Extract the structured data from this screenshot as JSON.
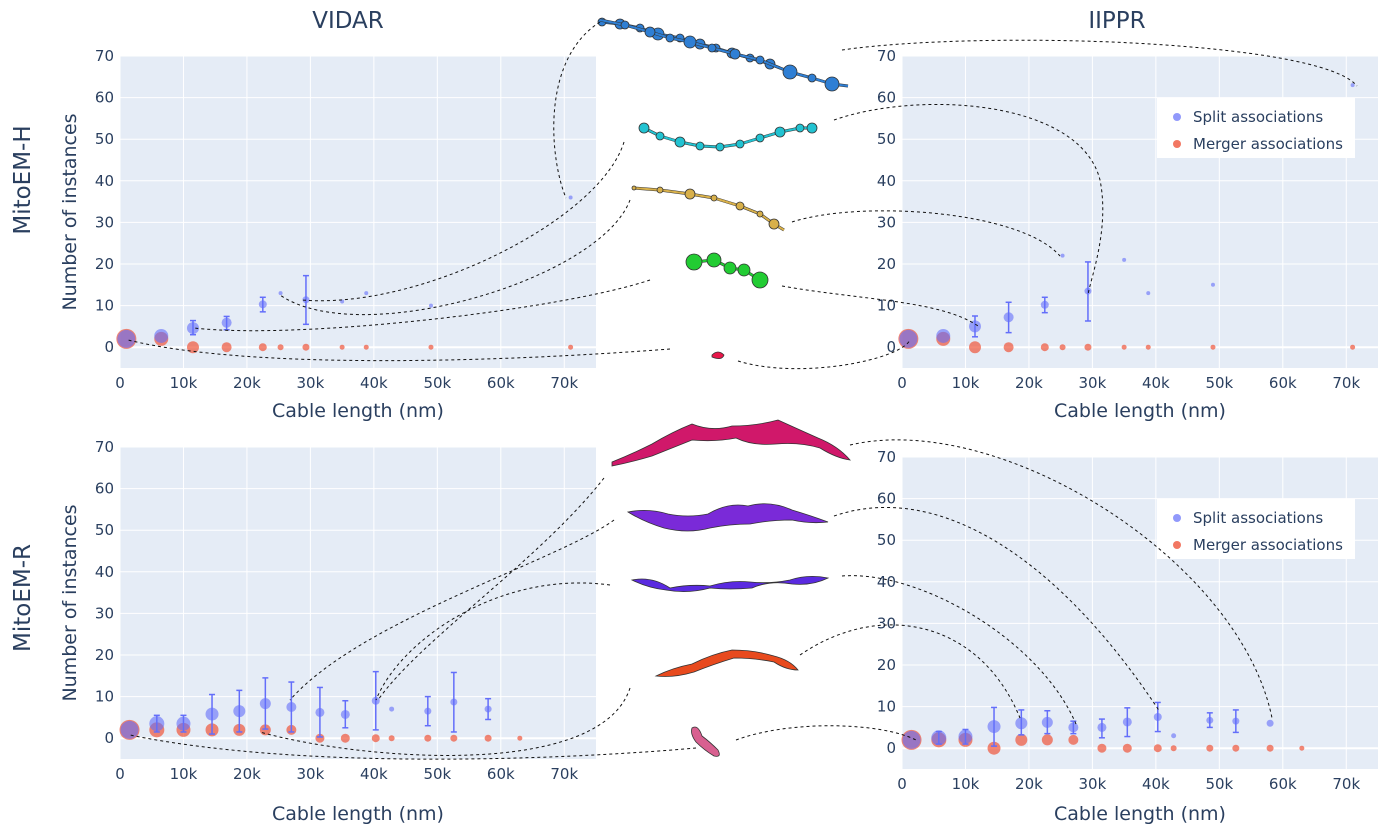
{
  "row_labels": [
    "MitoEM-H",
    "MitoEM-R"
  ],
  "column_titles": [
    "VIDAR",
    "IIPPR"
  ],
  "colors": {
    "split": "#636efa",
    "merger": "#ef553b",
    "plot_bg": "#e5ecf6",
    "grid": "#ffffff",
    "text": "#2a3f5f"
  },
  "chart_data": [
    {
      "type": "scatter",
      "panel": "MitoEM-H / VIDAR",
      "title": "VIDAR",
      "row_label": "MitoEM-H",
      "xlabel": "Cable length (nm)",
      "ylabel": "Number of instances",
      "xlim": [
        0,
        75000
      ],
      "ylim": [
        -5,
        70
      ],
      "xticks": [
        0,
        10000,
        20000,
        30000,
        40000,
        50000,
        60000,
        70000
      ],
      "xtick_labels": [
        "0",
        "10k",
        "20k",
        "30k",
        "40k",
        "50k",
        "60k",
        "70k"
      ],
      "yticks": [
        0,
        10,
        20,
        30,
        40,
        50,
        60,
        70
      ],
      "ytick_labels": [
        "0",
        "10",
        "20",
        "30",
        "40",
        "50",
        "60",
        "70"
      ],
      "grid": true,
      "legend": false,
      "series": [
        {
          "name": "Split associations",
          "points": [
            {
              "x": 1000,
              "y": 2,
              "lo": 2,
              "hi": 2,
              "size": 9
            },
            {
              "x": 6500,
              "y": 2.7,
              "lo": 2.7,
              "hi": 2.7,
              "size": 7
            },
            {
              "x": 11500,
              "y": 4.6,
              "lo": 3,
              "hi": 6.4,
              "size": 6
            },
            {
              "x": 16800,
              "y": 5.9,
              "lo": 4.2,
              "hi": 7.4,
              "size": 5
            },
            {
              "x": 22500,
              "y": 10.3,
              "lo": 8.5,
              "hi": 12,
              "size": 4
            },
            {
              "x": 25300,
              "y": 13,
              "lo": 13,
              "hi": 13,
              "size": 2
            },
            {
              "x": 29300,
              "y": 11.4,
              "lo": 5.5,
              "hi": 17.2,
              "size": 3.5
            },
            {
              "x": 35000,
              "y": 11,
              "lo": 11,
              "hi": 11,
              "size": 2
            },
            {
              "x": 38800,
              "y": 13,
              "lo": 13,
              "hi": 13,
              "size": 2
            },
            {
              "x": 49000,
              "y": 10,
              "lo": 10,
              "hi": 10,
              "size": 2
            },
            {
              "x": 71000,
              "y": 36,
              "lo": 36,
              "hi": 36,
              "size": 2
            }
          ]
        },
        {
          "name": "Merger associations",
          "points": [
            {
              "x": 1000,
              "y": 2,
              "size": 10
            },
            {
              "x": 6500,
              "y": 2,
              "size": 7
            },
            {
              "x": 11500,
              "y": 0,
              "size": 6
            },
            {
              "x": 16800,
              "y": 0,
              "size": 5
            },
            {
              "x": 22500,
              "y": 0,
              "size": 4
            },
            {
              "x": 25300,
              "y": 0,
              "size": 3
            },
            {
              "x": 29300,
              "y": 0,
              "size": 3.5
            },
            {
              "x": 35000,
              "y": 0,
              "size": 2.5
            },
            {
              "x": 38800,
              "y": 0,
              "size": 2.5
            },
            {
              "x": 49000,
              "y": 0,
              "size": 2.5
            },
            {
              "x": 71000,
              "y": 0,
              "size": 2.5
            }
          ]
        }
      ]
    },
    {
      "type": "scatter",
      "panel": "MitoEM-H / IIPPR",
      "title": "IIPPR",
      "xlabel": "Cable length (nm)",
      "ylabel": "",
      "xlim": [
        0,
        75000
      ],
      "ylim": [
        -5,
        70
      ],
      "xticks": [
        0,
        10000,
        20000,
        30000,
        40000,
        50000,
        60000,
        70000
      ],
      "xtick_labels": [
        "0",
        "10k",
        "20k",
        "30k",
        "40k",
        "50k",
        "60k",
        "70k"
      ],
      "yticks": [
        0,
        10,
        20,
        30,
        40,
        50,
        60,
        70
      ],
      "ytick_labels": [
        "0",
        "10",
        "20",
        "30",
        "40",
        "50",
        "60",
        "70"
      ],
      "grid": true,
      "legend": true,
      "legend_position": "top-right",
      "series": [
        {
          "name": "Split associations",
          "points": [
            {
              "x": 1000,
              "y": 2,
              "lo": 2,
              "hi": 2,
              "size": 9
            },
            {
              "x": 6500,
              "y": 2.7,
              "lo": 2.7,
              "hi": 2.7,
              "size": 7
            },
            {
              "x": 11500,
              "y": 5,
              "lo": 2.5,
              "hi": 7.5,
              "size": 6
            },
            {
              "x": 16800,
              "y": 7.2,
              "lo": 3.5,
              "hi": 10.8,
              "size": 5
            },
            {
              "x": 22500,
              "y": 10.2,
              "lo": 8.3,
              "hi": 12,
              "size": 4
            },
            {
              "x": 25300,
              "y": 22,
              "lo": 22,
              "hi": 22,
              "size": 2
            },
            {
              "x": 29300,
              "y": 13.5,
              "lo": 6.3,
              "hi": 20.5,
              "size": 3.5
            },
            {
              "x": 35000,
              "y": 21,
              "lo": 21,
              "hi": 21,
              "size": 2
            },
            {
              "x": 38800,
              "y": 13,
              "lo": 13,
              "hi": 13,
              "size": 2
            },
            {
              "x": 49000,
              "y": 15,
              "lo": 15,
              "hi": 15,
              "size": 2
            },
            {
              "x": 71000,
              "y": 63,
              "lo": 63,
              "hi": 63,
              "size": 2
            }
          ]
        },
        {
          "name": "Merger associations",
          "points": [
            {
              "x": 1000,
              "y": 2,
              "size": 10
            },
            {
              "x": 6500,
              "y": 2,
              "size": 7
            },
            {
              "x": 11500,
              "y": 0,
              "size": 6
            },
            {
              "x": 16800,
              "y": 0,
              "size": 5
            },
            {
              "x": 22500,
              "y": 0,
              "size": 4
            },
            {
              "x": 25300,
              "y": 0,
              "size": 3
            },
            {
              "x": 29300,
              "y": 0,
              "size": 3.5
            },
            {
              "x": 35000,
              "y": 0,
              "size": 2.5
            },
            {
              "x": 38800,
              "y": 0,
              "size": 2.5
            },
            {
              "x": 49000,
              "y": 0,
              "size": 2.5
            },
            {
              "x": 71000,
              "y": 0,
              "size": 2.5
            }
          ]
        }
      ]
    },
    {
      "type": "scatter",
      "panel": "MitoEM-R / VIDAR",
      "row_label": "MitoEM-R",
      "xlabel": "Cable length (nm)",
      "ylabel": "Number of instances",
      "xlim": [
        0,
        75000
      ],
      "ylim": [
        -5,
        70
      ],
      "xticks": [
        0,
        10000,
        20000,
        30000,
        40000,
        50000,
        60000,
        70000
      ],
      "xtick_labels": [
        "0",
        "10k",
        "20k",
        "30k",
        "40k",
        "50k",
        "60k",
        "70k"
      ],
      "yticks": [
        0,
        10,
        20,
        30,
        40,
        50,
        60,
        70
      ],
      "ytick_labels": [
        "0",
        "10",
        "20",
        "30",
        "40",
        "50",
        "60",
        "70"
      ],
      "grid": true,
      "legend": false,
      "series": [
        {
          "name": "Split associations",
          "points": [
            {
              "x": 1500,
              "y": 2,
              "lo": 2,
              "hi": 2,
              "size": 9
            },
            {
              "x": 5800,
              "y": 3.5,
              "lo": 1.5,
              "hi": 5.5,
              "size": 7.5
            },
            {
              "x": 10000,
              "y": 3.5,
              "lo": 1.5,
              "hi": 5.5,
              "size": 7
            },
            {
              "x": 14500,
              "y": 5.8,
              "lo": 1,
              "hi": 10.5,
              "size": 6.5
            },
            {
              "x": 18800,
              "y": 6.5,
              "lo": 1.5,
              "hi": 11.5,
              "size": 6
            },
            {
              "x": 22900,
              "y": 8.3,
              "lo": 2.2,
              "hi": 14.5,
              "size": 5.5
            },
            {
              "x": 27000,
              "y": 7.5,
              "lo": 1.5,
              "hi": 13.5,
              "size": 5
            },
            {
              "x": 31500,
              "y": 6.2,
              "lo": 0.3,
              "hi": 12.2,
              "size": 4.5
            },
            {
              "x": 35500,
              "y": 5.7,
              "lo": 2.5,
              "hi": 9,
              "size": 4.5
            },
            {
              "x": 40300,
              "y": 9,
              "lo": 2,
              "hi": 16,
              "size": 4
            },
            {
              "x": 42800,
              "y": 7,
              "lo": 7,
              "hi": 7,
              "size": 2.5
            },
            {
              "x": 48500,
              "y": 6.5,
              "lo": 3,
              "hi": 10,
              "size": 3.5
            },
            {
              "x": 52600,
              "y": 8.7,
              "lo": 1.5,
              "hi": 15.8,
              "size": 3.5
            },
            {
              "x": 58000,
              "y": 7,
              "lo": 4.5,
              "hi": 9.5,
              "size": 3.5
            }
          ]
        },
        {
          "name": "Merger associations",
          "points": [
            {
              "x": 1500,
              "y": 2,
              "size": 10
            },
            {
              "x": 5800,
              "y": 2,
              "size": 7.5
            },
            {
              "x": 10000,
              "y": 2,
              "size": 7
            },
            {
              "x": 14500,
              "y": 2,
              "size": 6.5
            },
            {
              "x": 18800,
              "y": 2,
              "size": 6
            },
            {
              "x": 22900,
              "y": 2,
              "size": 5.5
            },
            {
              "x": 27000,
              "y": 2,
              "size": 5
            },
            {
              "x": 31500,
              "y": 0,
              "size": 4.5
            },
            {
              "x": 35500,
              "y": 0,
              "size": 4.5
            },
            {
              "x": 40300,
              "y": 0,
              "size": 4
            },
            {
              "x": 42800,
              "y": 0,
              "size": 3
            },
            {
              "x": 48500,
              "y": 0,
              "size": 3.5
            },
            {
              "x": 52600,
              "y": 0,
              "size": 3.5
            },
            {
              "x": 58000,
              "y": 0,
              "size": 3.5
            },
            {
              "x": 63000,
              "y": 0,
              "size": 2.5
            }
          ]
        }
      ]
    },
    {
      "type": "scatter",
      "panel": "MitoEM-R / IIPPR",
      "xlabel": "Cable length (nm)",
      "ylabel": "",
      "xlim": [
        0,
        75000
      ],
      "ylim": [
        -5,
        70
      ],
      "xticks": [
        0,
        10000,
        20000,
        30000,
        40000,
        50000,
        60000,
        70000
      ],
      "xtick_labels": [
        "0",
        "10k",
        "20k",
        "30k",
        "40k",
        "50k",
        "60k",
        "70k"
      ],
      "yticks": [
        0,
        10,
        20,
        30,
        40,
        50,
        60,
        70
      ],
      "ytick_labels": [
        "0",
        "10",
        "20",
        "30",
        "40",
        "50",
        "60",
        "70"
      ],
      "grid": true,
      "legend": true,
      "legend_position": "top-right",
      "series": [
        {
          "name": "Split associations",
          "points": [
            {
              "x": 1500,
              "y": 2,
              "lo": 2,
              "hi": 2,
              "size": 9
            },
            {
              "x": 5800,
              "y": 2.5,
              "lo": 1,
              "hi": 4,
              "size": 7.5
            },
            {
              "x": 10000,
              "y": 2.8,
              "lo": 1,
              "hi": 4.5,
              "size": 7
            },
            {
              "x": 14500,
              "y": 5.2,
              "lo": 0.5,
              "hi": 9.8,
              "size": 6.5
            },
            {
              "x": 18800,
              "y": 6,
              "lo": 3.2,
              "hi": 9.2,
              "size": 6
            },
            {
              "x": 22900,
              "y": 6.2,
              "lo": 3.5,
              "hi": 9,
              "size": 5.5
            },
            {
              "x": 27000,
              "y": 5,
              "lo": 3.5,
              "hi": 6.5,
              "size": 5
            },
            {
              "x": 31500,
              "y": 5,
              "lo": 2.5,
              "hi": 7,
              "size": 4.5
            },
            {
              "x": 35500,
              "y": 6.3,
              "lo": 2.8,
              "hi": 9.7,
              "size": 4.5
            },
            {
              "x": 40300,
              "y": 7.5,
              "lo": 4,
              "hi": 11,
              "size": 4
            },
            {
              "x": 42800,
              "y": 3,
              "lo": 3,
              "hi": 3,
              "size": 2.5
            },
            {
              "x": 48500,
              "y": 6.7,
              "lo": 5,
              "hi": 8.5,
              "size": 3.5
            },
            {
              "x": 52600,
              "y": 6.5,
              "lo": 3.8,
              "hi": 9.2,
              "size": 3.5
            },
            {
              "x": 58000,
              "y": 6,
              "lo": 6,
              "hi": 6,
              "size": 3.5
            }
          ]
        },
        {
          "name": "Merger associations",
          "points": [
            {
              "x": 1500,
              "y": 2,
              "size": 10
            },
            {
              "x": 5800,
              "y": 2,
              "size": 7.5
            },
            {
              "x": 10000,
              "y": 2,
              "size": 7
            },
            {
              "x": 14500,
              "y": 0,
              "size": 6.5
            },
            {
              "x": 18800,
              "y": 2,
              "size": 6
            },
            {
              "x": 22900,
              "y": 2,
              "size": 5.5
            },
            {
              "x": 27000,
              "y": 2,
              "size": 5
            },
            {
              "x": 31500,
              "y": 0,
              "size": 4.5
            },
            {
              "x": 35500,
              "y": 0,
              "size": 4.5
            },
            {
              "x": 40300,
              "y": 0,
              "size": 4
            },
            {
              "x": 42800,
              "y": 0,
              "size": 3
            },
            {
              "x": 48500,
              "y": 0,
              "size": 3.5
            },
            {
              "x": 52600,
              "y": 0,
              "size": 3.5
            },
            {
              "x": 58000,
              "y": 0,
              "size": 3.5
            },
            {
              "x": 63000,
              "y": 0,
              "size": 2.5
            }
          ]
        }
      ]
    }
  ],
  "mito_shapes": [
    {
      "name": "mito-h-1",
      "color": "#2f7fd4"
    },
    {
      "name": "mito-h-2",
      "color": "#22c3d2"
    },
    {
      "name": "mito-h-3",
      "color": "#d8b04a"
    },
    {
      "name": "mito-h-4",
      "color": "#22cc33"
    },
    {
      "name": "mito-h-5",
      "color": "#e8174a"
    },
    {
      "name": "mito-r-1",
      "color": "#d0186a"
    },
    {
      "name": "mito-r-2",
      "color": "#7a2ad8"
    },
    {
      "name": "mito-r-3",
      "color": "#5a2ae0"
    },
    {
      "name": "mito-r-4",
      "color": "#e84a1e"
    },
    {
      "name": "mito-r-5",
      "color": "#d86090"
    }
  ]
}
